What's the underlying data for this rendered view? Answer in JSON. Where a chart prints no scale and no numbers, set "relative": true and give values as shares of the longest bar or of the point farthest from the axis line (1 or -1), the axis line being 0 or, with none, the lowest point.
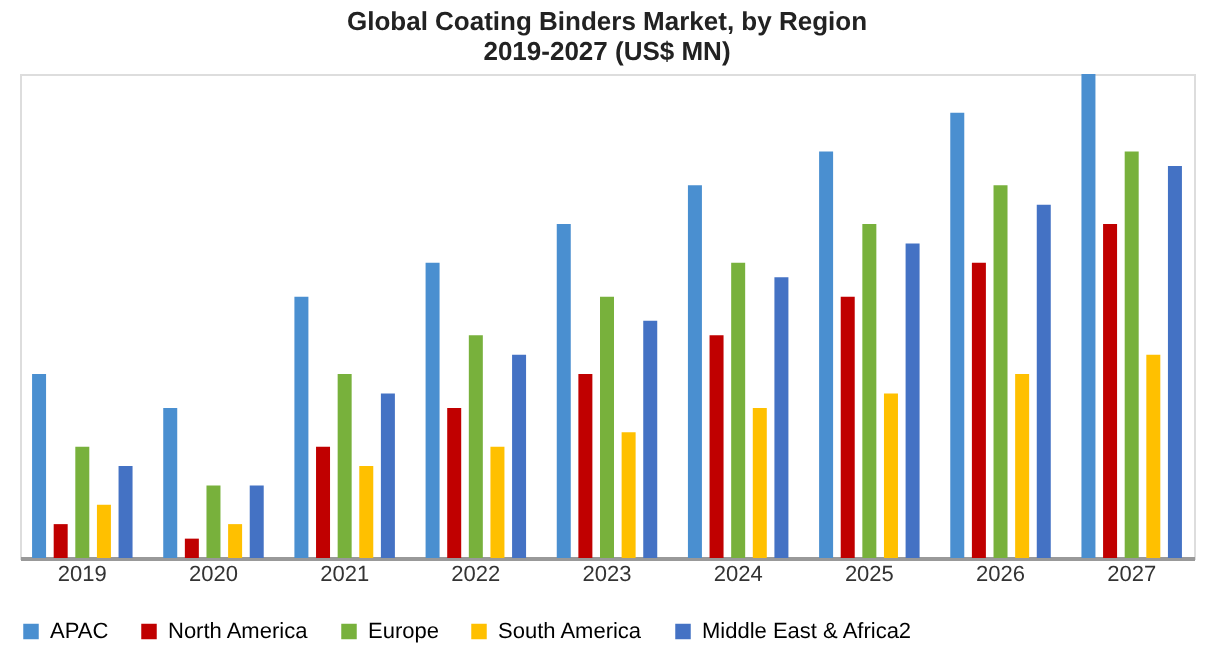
{
  "chart_data": {
    "type": "bar",
    "title": "Global Coating Binders  Market, by Region\n2019-2027 (US$ MN)",
    "relative": true,
    "legend": "bottom",
    "grid": false,
    "categories": [
      "2019",
      "2020",
      "2021",
      "2022",
      "2023",
      "2024",
      "2025",
      "2026",
      "2027"
    ],
    "series": [
      {
        "name": "APAC",
        "color": "#4a8fd0",
        "values": [
          0.38,
          0.31,
          0.54,
          0.61,
          0.69,
          0.77,
          0.84,
          0.92,
          1
        ]
      },
      {
        "name": "North America",
        "color": "#c00000",
        "values": [
          0.07,
          0.04,
          0.23,
          0.31,
          0.38,
          0.46,
          0.54,
          0.61,
          0.69
        ]
      },
      {
        "name": "Europe",
        "color": "#78b13c",
        "values": [
          0.23,
          0.15,
          0.38,
          0.46,
          0.54,
          0.61,
          0.69,
          0.77,
          0.84
        ]
      },
      {
        "name": "South America",
        "color": "#ffc000",
        "values": [
          0.11,
          0.07,
          0.19,
          0.23,
          0.26,
          0.31,
          0.34,
          0.38,
          0.42
        ]
      },
      {
        "name": "Middle East & Africa2",
        "color": "#4472c4",
        "values": [
          0.19,
          0.15,
          0.34,
          0.42,
          0.49,
          0.58,
          0.65,
          0.73,
          0.81
        ]
      }
    ]
  }
}
